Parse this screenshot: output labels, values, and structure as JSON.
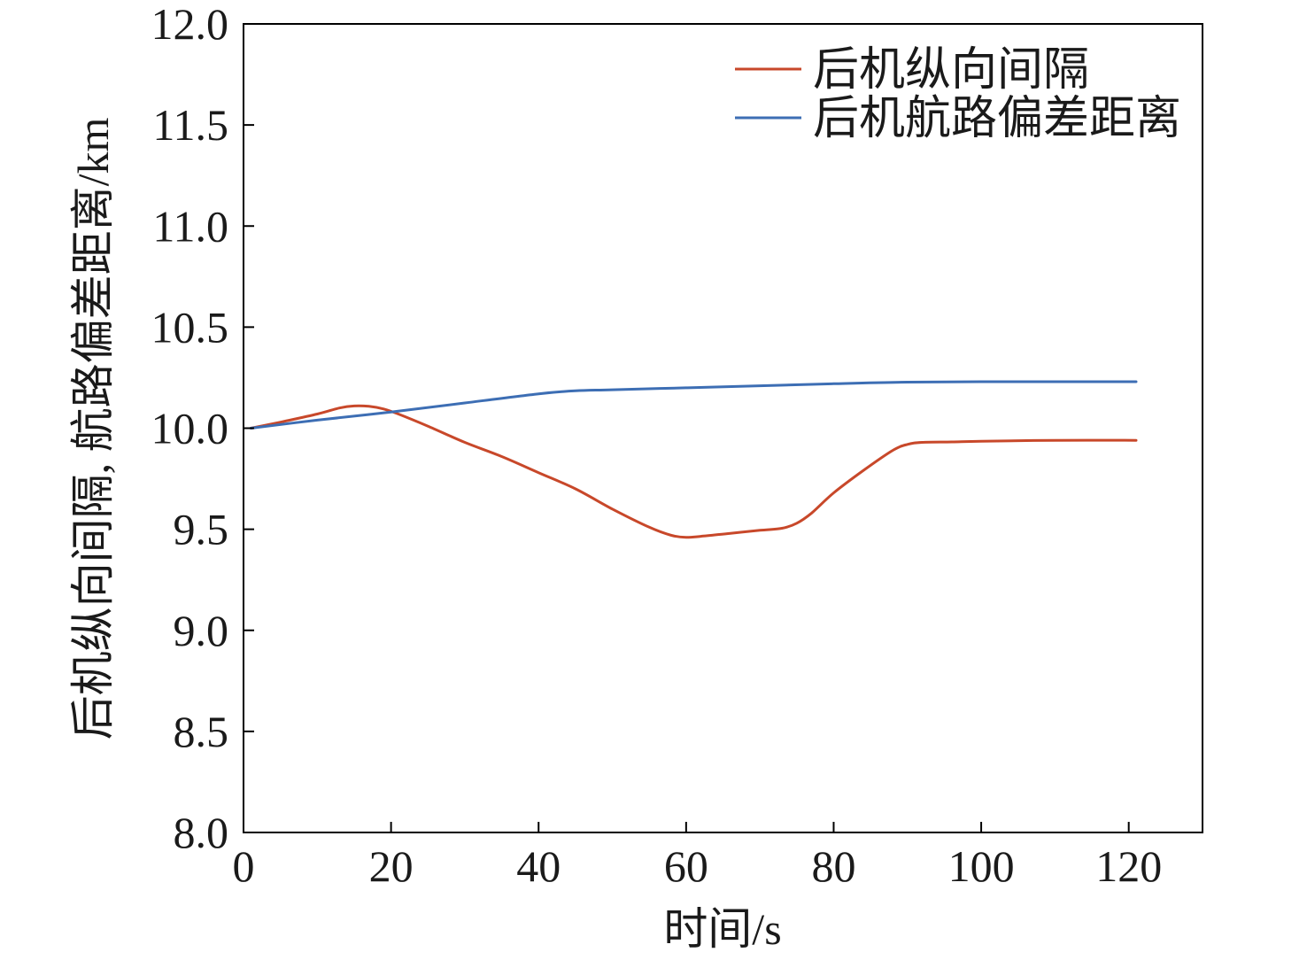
{
  "chart_data": {
    "type": "line",
    "xlabel": "时间/s",
    "ylabel": "后机纵向间隔, 航路偏差距离/km",
    "xlim": [
      0,
      130
    ],
    "ylim": [
      8.0,
      12.0
    ],
    "x_ticks": [
      0,
      20,
      40,
      60,
      80,
      100,
      120
    ],
    "x_tick_labels": [
      "0",
      "20",
      "40",
      "60",
      "80",
      "100",
      "120"
    ],
    "y_ticks": [
      8.0,
      8.5,
      9.0,
      9.5,
      10.0,
      10.5,
      11.0,
      11.5,
      12.0
    ],
    "y_tick_labels": [
      "8.0",
      "8.5",
      "9.0",
      "9.5",
      "10.0",
      "10.5",
      "11.0",
      "11.5",
      "12.0"
    ],
    "grid": false,
    "legend": "top-right",
    "series": [
      {
        "name": "后机纵向间隔",
        "color": "#c8482a",
        "x": [
          1,
          5,
          10,
          13,
          15,
          17,
          19,
          21,
          25,
          30,
          35,
          40,
          45,
          50,
          55,
          58,
          60,
          62,
          66,
          70,
          73,
          75,
          77,
          80,
          84,
          88,
          90,
          92,
          96,
          100,
          110,
          121
        ],
        "y": [
          10.0,
          10.03,
          10.07,
          10.1,
          10.11,
          10.108,
          10.095,
          10.07,
          10.01,
          9.93,
          9.86,
          9.78,
          9.7,
          9.6,
          9.51,
          9.47,
          9.46,
          9.465,
          9.48,
          9.495,
          9.505,
          9.53,
          9.58,
          9.68,
          9.79,
          9.89,
          9.92,
          9.93,
          9.932,
          9.935,
          9.94,
          9.94
        ]
      },
      {
        "name": "后机航路偏差距离",
        "color": "#3d6eb4",
        "x": [
          1,
          10,
          20,
          30,
          40,
          45,
          50,
          60,
          70,
          80,
          90,
          100,
          110,
          121
        ],
        "y": [
          10.0,
          10.04,
          10.08,
          10.125,
          10.17,
          10.185,
          10.19,
          10.2,
          10.21,
          10.22,
          10.228,
          10.23,
          10.23,
          10.23
        ]
      }
    ]
  }
}
